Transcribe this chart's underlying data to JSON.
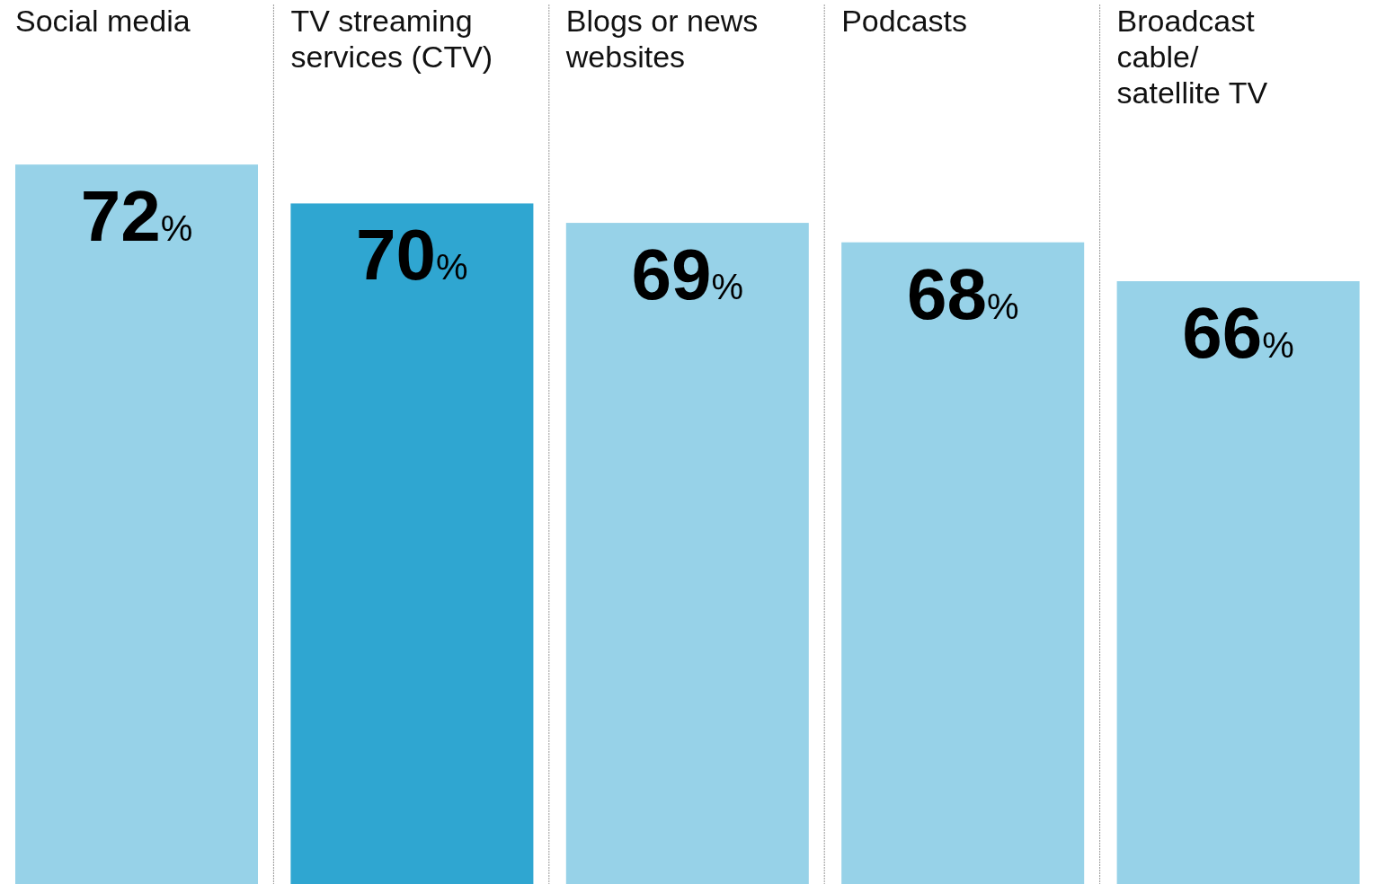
{
  "chart_data": {
    "type": "bar",
    "categories": [
      "Social media",
      "TV streaming services (CTV)",
      "Blogs or news websites",
      "Podcasts",
      "Broadcast cable/ satellite TV"
    ],
    "values": [
      72,
      70,
      69,
      68,
      66
    ],
    "value_labels": [
      "72%",
      "70%",
      "69%",
      "68%",
      "66%"
    ],
    "colors": [
      "#97d2e8",
      "#2fa6d1",
      "#97d2e8",
      "#97d2e8",
      "#97d2e8"
    ],
    "ylim": [
      35,
      80
    ]
  }
}
